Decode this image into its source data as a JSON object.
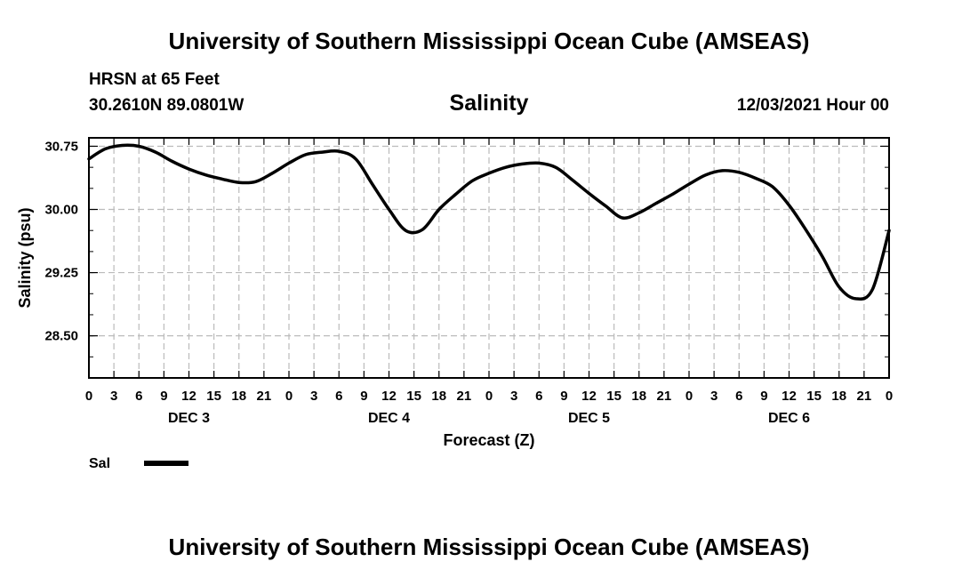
{
  "header": {
    "title": "University of Southern Mississippi Ocean Cube (AMSEAS)",
    "station": "HRSN at 65 Feet",
    "coords": "30.2610N  89.0801W",
    "variable": "Salinity",
    "datetime": "12/03/2021 Hour 00"
  },
  "footer": {
    "title": "University of Southern Mississippi Ocean Cube (AMSEAS)"
  },
  "colors": {
    "line": "#000000",
    "grid": "#bbbbbb"
  },
  "chart_data": {
    "type": "line",
    "title": "Salinity",
    "xlabel": "Forecast (Z)",
    "ylabel": "Salinity (psu)",
    "ylim": [
      28.0,
      30.85
    ],
    "xlim": [
      0,
      96
    ],
    "grid": true,
    "x_tick_labels": [
      "0",
      "3",
      "6",
      "9",
      "12",
      "15",
      "18",
      "21",
      "0",
      "3",
      "6",
      "9",
      "12",
      "15",
      "18",
      "21",
      "0",
      "3",
      "6",
      "9",
      "12",
      "15",
      "18",
      "21",
      "0",
      "3",
      "6",
      "9",
      "12",
      "15",
      "18",
      "21",
      "0"
    ],
    "y_tick_values": [
      28.5,
      29.25,
      30.0,
      30.75
    ],
    "y_tick_labels": [
      "28.50",
      "29.25",
      "30.00",
      "30.75"
    ],
    "day_labels": [
      {
        "label": "DEC 3",
        "hour": 12
      },
      {
        "label": "DEC 4",
        "hour": 36
      },
      {
        "label": "DEC 5",
        "hour": 60
      },
      {
        "label": "DEC 6",
        "hour": 84
      }
    ],
    "legend": [
      {
        "name": "Sal",
        "color": "#000000"
      }
    ],
    "series": [
      {
        "name": "Sal",
        "x": [
          0,
          2,
          4,
          6,
          8,
          10,
          12,
          14,
          16,
          18,
          20,
          22,
          24,
          26,
          28,
          30,
          32,
          34,
          36,
          38,
          40,
          42,
          44,
          46,
          48,
          50,
          52,
          54,
          56,
          58,
          60,
          62,
          64,
          66,
          68,
          70,
          72,
          74,
          76,
          78,
          80,
          82,
          84,
          86,
          88,
          90,
          92,
          94,
          96
        ],
        "y": [
          30.6,
          30.72,
          30.76,
          30.75,
          30.68,
          30.57,
          30.48,
          30.41,
          30.36,
          30.32,
          30.33,
          30.43,
          30.55,
          30.65,
          30.68,
          30.69,
          30.6,
          30.3,
          30.0,
          29.75,
          29.76,
          30.0,
          30.18,
          30.34,
          30.43,
          30.5,
          30.54,
          30.55,
          30.5,
          30.35,
          30.19,
          30.04,
          29.9,
          29.96,
          30.07,
          30.18,
          30.3,
          30.41,
          30.46,
          30.44,
          30.37,
          30.27,
          30.05,
          29.76,
          29.44,
          29.08,
          28.94,
          29.05,
          29.75
        ]
      }
    ]
  }
}
